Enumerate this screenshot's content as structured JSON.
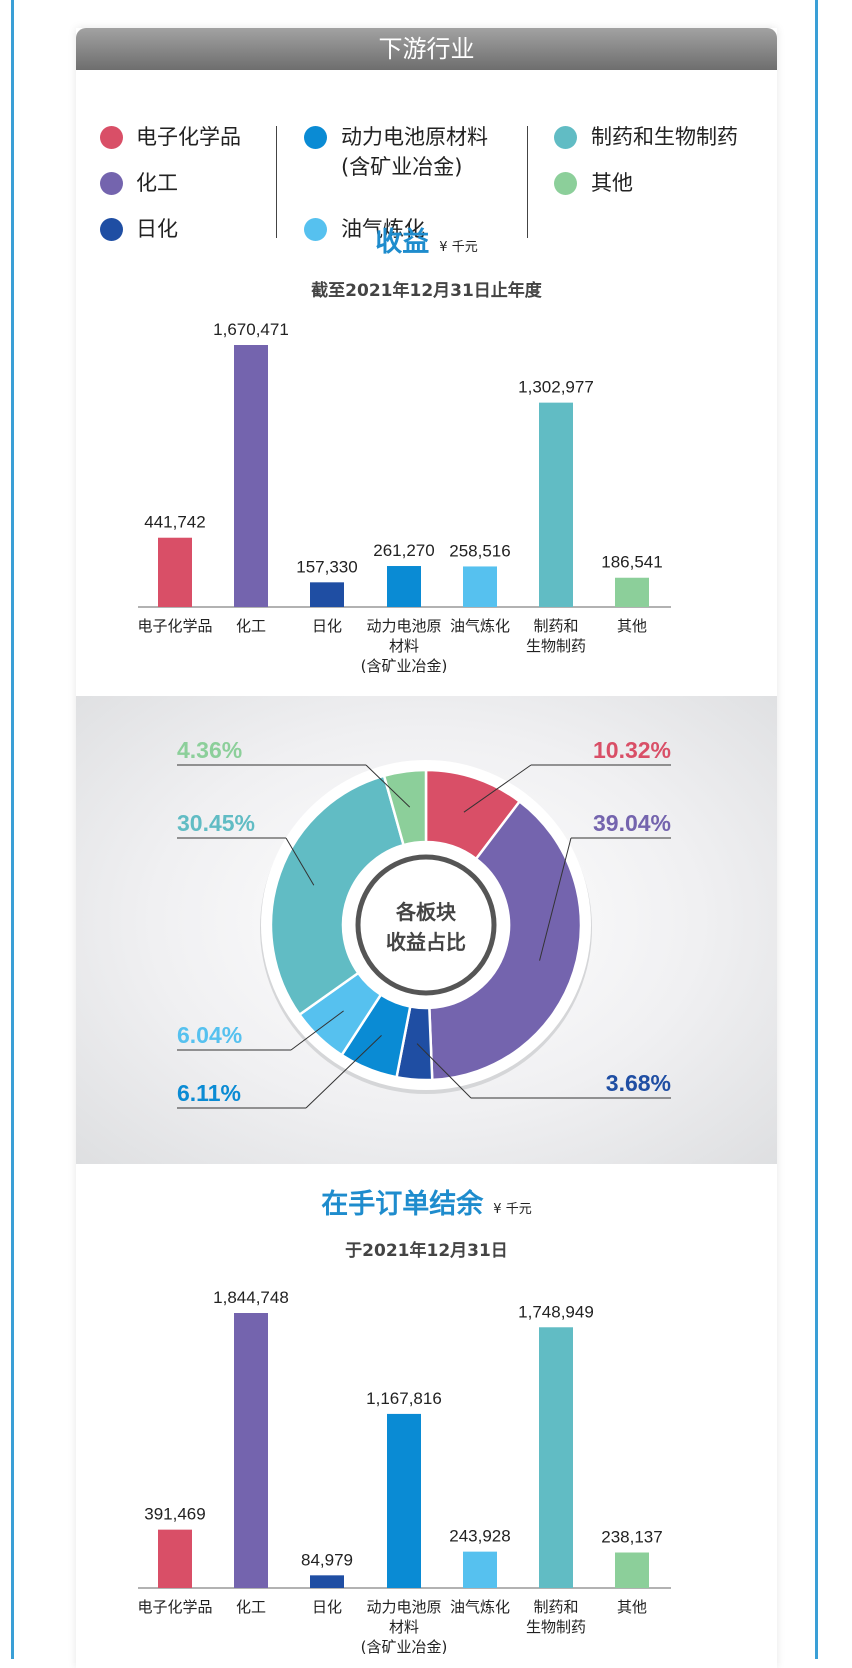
{
  "header": {
    "title": "下游行业"
  },
  "legend": {
    "items": [
      {
        "label": "电子化学品",
        "color": "#d94f67"
      },
      {
        "label": "化工",
        "color": "#7464ae"
      },
      {
        "label": "日化",
        "color": "#1f4ea3"
      },
      {
        "label": "动力电池原材料",
        "label2": "(含矿业冶金)",
        "color": "#0a8bd4"
      },
      {
        "label": "油气炼化",
        "color": "#56c1ef"
      },
      {
        "label": "制药和生物制药",
        "color": "#61bcc4"
      },
      {
        "label": "其他",
        "color": "#8ccf9a"
      }
    ]
  },
  "revenue": {
    "title": "收益",
    "unit": "¥ 千元",
    "subtitle": "截至2021年12月31日止年度"
  },
  "pie": {
    "center_line1": "各板块",
    "center_line2": "收益占比"
  },
  "backlog": {
    "title": "在手订单结余",
    "unit": "¥ 千元",
    "subtitle": "于2021年12月31日"
  },
  "chart_data": [
    {
      "type": "bar",
      "title": "收益",
      "categories": [
        [
          "电子化学品"
        ],
        [
          "化工"
        ],
        [
          "日化"
        ],
        [
          "动力电池原",
          "材料",
          "(含矿业冶金)"
        ],
        [
          "油气炼化"
        ],
        [
          "制药和",
          "生物制药"
        ],
        [
          "其他"
        ]
      ],
      "values": [
        441742,
        1670471,
        157330,
        261270,
        258516,
        1302977,
        186541
      ],
      "value_labels": [
        "441,742",
        "1,670,471",
        "157,330",
        "261,270",
        "258,516",
        "1,302,977",
        "186,541"
      ],
      "colors": [
        "#d94f67",
        "#7464ae",
        "#1f4ea3",
        "#0a8bd4",
        "#56c1ef",
        "#61bcc4",
        "#8ccf9a"
      ],
      "ylim": [
        0,
        1670471
      ]
    },
    {
      "type": "pie",
      "title": "各板块收益占比",
      "slices": [
        {
          "name": "电子化学品",
          "value": 10.32,
          "label": "10.32%",
          "color": "#d94f67"
        },
        {
          "name": "化工",
          "value": 39.04,
          "label": "39.04%",
          "color": "#7464ae"
        },
        {
          "name": "日化",
          "value": 3.68,
          "label": "3.68%",
          "color": "#1f4ea3"
        },
        {
          "name": "动力电池原材料(含矿业冶金)",
          "value": 6.11,
          "label": "6.11%",
          "color": "#0a8bd4"
        },
        {
          "name": "油气炼化",
          "value": 6.04,
          "label": "6.04%",
          "color": "#56c1ef"
        },
        {
          "name": "制药和生物制药",
          "value": 30.45,
          "label": "30.45%",
          "color": "#61bcc4"
        },
        {
          "name": "其他",
          "value": 4.36,
          "label": "4.36%",
          "color": "#8ccf9a"
        }
      ]
    },
    {
      "type": "bar",
      "title": "在手订单结余",
      "categories": [
        [
          "电子化学品"
        ],
        [
          "化工"
        ],
        [
          "日化"
        ],
        [
          "动力电池原",
          "材料",
          "(含矿业冶金)"
        ],
        [
          "油气炼化"
        ],
        [
          "制药和",
          "生物制药"
        ],
        [
          "其他"
        ]
      ],
      "values": [
        391469,
        1844748,
        84979,
        1167816,
        243928,
        1748949,
        238137
      ],
      "value_labels": [
        "391,469",
        "1,844,748",
        "84,979",
        "1,167,816",
        "243,928",
        "1,748,949",
        "238,137"
      ],
      "colors": [
        "#d94f67",
        "#7464ae",
        "#1f4ea3",
        "#0a8bd4",
        "#56c1ef",
        "#61bcc4",
        "#8ccf9a"
      ],
      "ylim": [
        0,
        1844748
      ]
    }
  ]
}
